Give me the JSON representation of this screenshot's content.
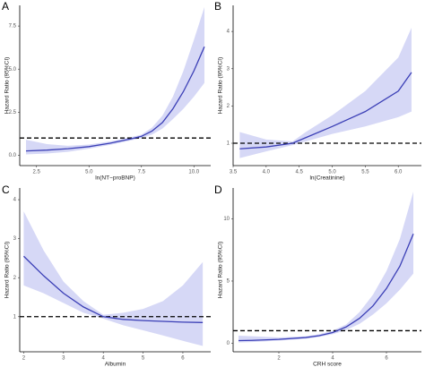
{
  "chart_data": [
    {
      "type": "line",
      "panel_label": "A",
      "x_label": "ln(NT−proBNP)",
      "y_label": "Hazard Ratio (95%CI)",
      "x": [
        2,
        3,
        4,
        5,
        6,
        7,
        7.5,
        8,
        8.5,
        9,
        9.5,
        10,
        10.5
      ],
      "values": [
        0.25,
        0.3,
        0.38,
        0.5,
        0.7,
        0.95,
        1.1,
        1.4,
        1.9,
        2.7,
        3.7,
        4.9,
        6.3
      ],
      "lower": [
        0.05,
        0.1,
        0.2,
        0.38,
        0.6,
        0.86,
        1.0,
        1.2,
        1.55,
        2.1,
        2.7,
        3.4,
        4.2
      ],
      "upper": [
        0.9,
        0.65,
        0.55,
        0.62,
        0.8,
        1.05,
        1.2,
        1.6,
        2.3,
        3.4,
        4.9,
        6.7,
        8.6
      ],
      "reference_line": 1,
      "color": "#3b3fb6",
      "band_color": "#d6d8f6",
      "xlim": [
        1.7,
        10.8
      ],
      "ylim": [
        -0.6,
        8.7
      ],
      "xticks": [
        {
          "value": 2.5,
          "label": "2.5"
        },
        {
          "value": 5,
          "label": "5.0"
        },
        {
          "value": 7.5,
          "label": "7.5"
        },
        {
          "value": 10,
          "label": "10.0"
        }
      ],
      "yticks": [
        {
          "value": 0,
          "label": "0.0"
        },
        {
          "value": 2.5,
          "label": "2.5"
        },
        {
          "value": 5,
          "label": "5.0"
        },
        {
          "value": 7.5,
          "label": "7.5"
        }
      ]
    },
    {
      "type": "line",
      "panel_label": "B",
      "x_label": "ln(Creatinine)",
      "y_label": "Hazard Ratio (95%CI)",
      "x": [
        3.6,
        4.0,
        4.4,
        4.6,
        5.0,
        5.5,
        6.0,
        6.2
      ],
      "values": [
        0.85,
        0.9,
        1.0,
        1.15,
        1.45,
        1.85,
        2.4,
        2.9
      ],
      "lower": [
        0.6,
        0.78,
        0.95,
        1.05,
        1.25,
        1.45,
        1.7,
        1.85
      ],
      "upper": [
        1.3,
        1.1,
        1.05,
        1.3,
        1.75,
        2.4,
        3.3,
        4.1
      ],
      "reference_line": 1,
      "color": "#3b3fb6",
      "band_color": "#d6d8f6",
      "xlim": [
        3.5,
        6.35
      ],
      "ylim": [
        0.4,
        4.7
      ],
      "xticks": [
        3.5,
        {
          "value": 4,
          "label": "4.0"
        },
        4.5,
        {
          "value": 5,
          "label": "5.0"
        },
        5.5,
        {
          "value": 6,
          "label": "6.0"
        }
      ],
      "yticks": [
        1,
        2,
        3,
        4
      ]
    },
    {
      "type": "line",
      "panel_label": "C",
      "x_label": "Albumin",
      "y_label": "Hazard Ratio (95%CI)",
      "x": [
        2,
        2.5,
        3,
        3.5,
        4,
        4.5,
        5,
        5.5,
        6,
        6.5
      ],
      "values": [
        2.55,
        2.05,
        1.6,
        1.25,
        1.0,
        0.93,
        0.9,
        0.88,
        0.86,
        0.85
      ],
      "lower": [
        1.8,
        1.6,
        1.35,
        1.1,
        0.95,
        0.78,
        0.65,
        0.52,
        0.38,
        0.25
      ],
      "upper": [
        3.7,
        2.7,
        1.9,
        1.4,
        1.05,
        1.1,
        1.2,
        1.4,
        1.8,
        2.4
      ],
      "reference_line": 1,
      "color": "#3b3fb6",
      "band_color": "#d6d8f6",
      "xlim": [
        1.9,
        6.7
      ],
      "ylim": [
        0.1,
        4.3
      ],
      "xticks": [
        2,
        3,
        4,
        5,
        6
      ],
      "yticks": [
        1,
        2,
        3,
        4
      ]
    },
    {
      "type": "line",
      "panel_label": "D",
      "x_label": "CRH score",
      "y_label": "Hazard Ratio (95%CI)",
      "x": [
        0.5,
        1,
        2,
        3,
        3.5,
        4,
        4.5,
        5,
        5.5,
        6,
        6.5,
        7
      ],
      "values": [
        0.2,
        0.22,
        0.3,
        0.45,
        0.6,
        0.85,
        1.3,
        2.0,
        3.0,
        4.4,
        6.2,
        8.8
      ],
      "lower": [
        0.05,
        0.08,
        0.2,
        0.35,
        0.5,
        0.72,
        1.05,
        1.55,
        2.3,
        3.2,
        4.3,
        5.6
      ],
      "upper": [
        0.6,
        0.55,
        0.45,
        0.55,
        0.72,
        1.0,
        1.5,
        2.5,
        3.9,
        5.8,
        8.4,
        12.2
      ],
      "reference_line": 1,
      "color": "#3b3fb6",
      "band_color": "#d6d8f6",
      "xlim": [
        0.3,
        7.3
      ],
      "ylim": [
        -0.7,
        12.5
      ],
      "xticks": [
        2,
        4,
        6
      ],
      "yticks": [
        0,
        5,
        10
      ]
    }
  ]
}
